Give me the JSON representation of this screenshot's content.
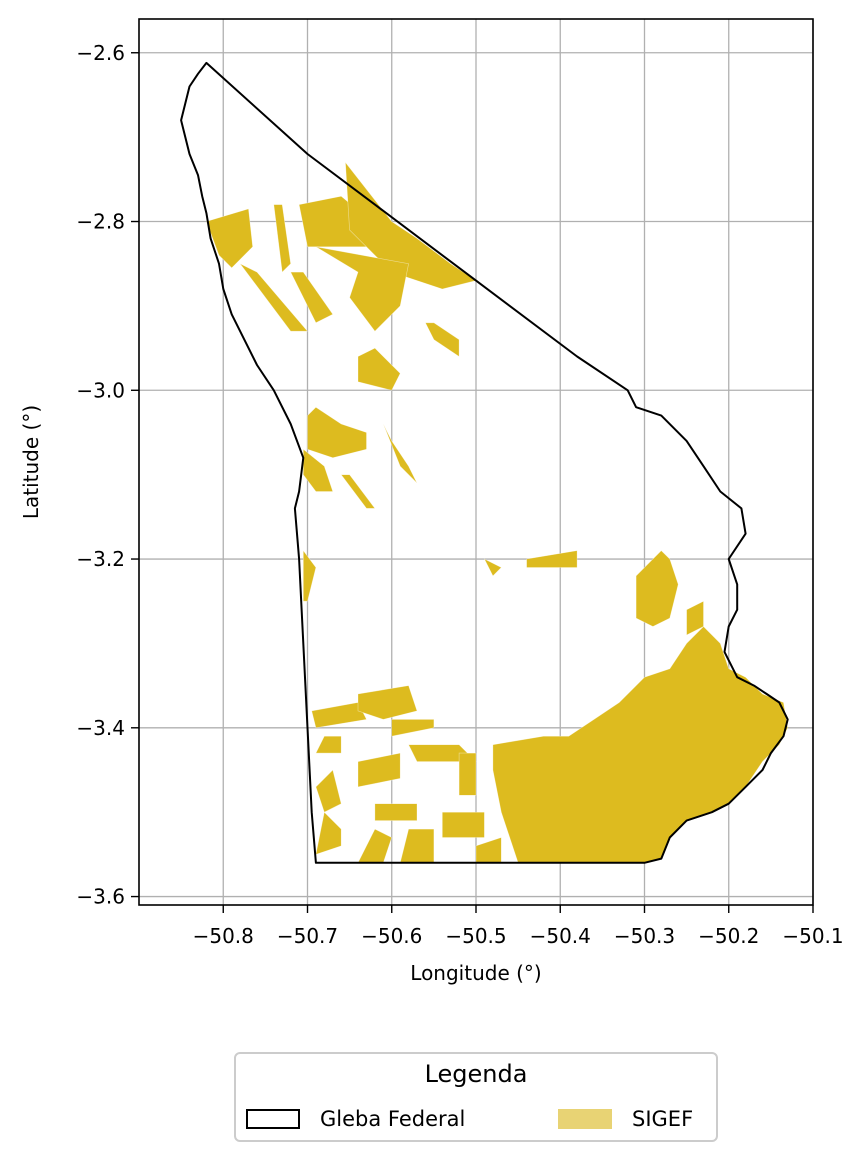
{
  "chart_data": {
    "type": "map",
    "title": "",
    "xlabel": "Longitude (°)",
    "ylabel": "Latitude (°)",
    "xlim": [
      -50.9,
      -50.1
    ],
    "ylim": [
      -3.61,
      -2.56
    ],
    "grid": true,
    "xticks": [
      -50.8,
      -50.7,
      -50.6,
      -50.5,
      -50.4,
      -50.3,
      -50.2,
      -50.1
    ],
    "xtick_labels": [
      "−50.8",
      "−50.7",
      "−50.6",
      "−50.5",
      "−50.4",
      "−50.3",
      "−50.2",
      "−50.1"
    ],
    "yticks": [
      -2.6,
      -2.8,
      -3.0,
      -3.2,
      -3.4,
      -3.6
    ],
    "ytick_labels": [
      "−2.6",
      "−2.8",
      "−3.0",
      "−3.2",
      "−3.4",
      "−3.6"
    ],
    "legend": {
      "title": "Legenda",
      "placement": "bottom-center",
      "entries": [
        {
          "label": "Gleba Federal",
          "style": "outline",
          "color": "#000000"
        },
        {
          "label": "SIGEF",
          "style": "fill",
          "color": "#ddbb1f"
        }
      ]
    },
    "layers": {
      "gleba_federal": {
        "name": "Gleba Federal",
        "outline_color": "#000000",
        "boundary": [
          [
            -50.82,
            -2.612
          ],
          [
            -50.83,
            -2.625
          ],
          [
            -50.84,
            -2.64
          ],
          [
            -50.845,
            -2.66
          ],
          [
            -50.85,
            -2.68
          ],
          [
            -50.845,
            -2.7
          ],
          [
            -50.84,
            -2.72
          ],
          [
            -50.83,
            -2.745
          ],
          [
            -50.825,
            -2.77
          ],
          [
            -50.82,
            -2.79
          ],
          [
            -50.815,
            -2.82
          ],
          [
            -50.805,
            -2.85
          ],
          [
            -50.8,
            -2.88
          ],
          [
            -50.79,
            -2.91
          ],
          [
            -50.775,
            -2.94
          ],
          [
            -50.76,
            -2.97
          ],
          [
            -50.74,
            -3.0
          ],
          [
            -50.72,
            -3.04
          ],
          [
            -50.705,
            -3.08
          ],
          [
            -50.71,
            -3.12
          ],
          [
            -50.715,
            -3.14
          ],
          [
            -50.71,
            -3.2
          ],
          [
            -50.705,
            -3.3
          ],
          [
            -50.7,
            -3.4
          ],
          [
            -50.695,
            -3.5
          ],
          [
            -50.69,
            -3.56
          ],
          [
            -50.3,
            -3.56
          ],
          [
            -50.28,
            -3.555
          ],
          [
            -50.27,
            -3.53
          ],
          [
            -50.25,
            -3.51
          ],
          [
            -50.22,
            -3.5
          ],
          [
            -50.2,
            -3.49
          ],
          [
            -50.18,
            -3.47
          ],
          [
            -50.16,
            -3.45
          ],
          [
            -50.15,
            -3.43
          ],
          [
            -50.135,
            -3.41
          ],
          [
            -50.13,
            -3.39
          ],
          [
            -50.14,
            -3.37
          ],
          [
            -50.155,
            -3.36
          ],
          [
            -50.17,
            -3.35
          ],
          [
            -50.19,
            -3.34
          ],
          [
            -50.205,
            -3.31
          ],
          [
            -50.2,
            -3.28
          ],
          [
            -50.19,
            -3.26
          ],
          [
            -50.19,
            -3.23
          ],
          [
            -50.2,
            -3.2
          ],
          [
            -50.18,
            -3.17
          ],
          [
            -50.185,
            -3.14
          ],
          [
            -50.21,
            -3.12
          ],
          [
            -50.23,
            -3.09
          ],
          [
            -50.25,
            -3.06
          ],
          [
            -50.28,
            -3.03
          ],
          [
            -50.31,
            -3.02
          ],
          [
            -50.32,
            -3.0
          ],
          [
            -50.38,
            -2.96
          ],
          [
            -50.5,
            -2.87
          ],
          [
            -50.62,
            -2.78
          ],
          [
            -50.7,
            -2.72
          ],
          [
            -50.82,
            -2.612
          ]
        ]
      },
      "sigef": {
        "name": "SIGEF",
        "fill_color": "#ddbb1f",
        "parcels": [
          [
            [
              -50.82,
              -2.8
            ],
            [
              -50.77,
              -2.785
            ],
            [
              -50.765,
              -2.83
            ],
            [
              -50.79,
              -2.855
            ],
            [
              -50.805,
              -2.84
            ]
          ],
          [
            [
              -50.74,
              -2.78
            ],
            [
              -50.73,
              -2.78
            ],
            [
              -50.72,
              -2.85
            ],
            [
              -50.73,
              -2.86
            ]
          ],
          [
            [
              -50.71,
              -2.78
            ],
            [
              -50.66,
              -2.77
            ],
            [
              -50.6,
              -2.82
            ],
            [
              -50.63,
              -2.83
            ],
            [
              -50.69,
              -2.83
            ],
            [
              -50.7,
              -2.83
            ]
          ],
          [
            [
              -50.655,
              -2.73
            ],
            [
              -50.6,
              -2.8
            ],
            [
              -50.57,
              -2.82
            ],
            [
              -50.53,
              -2.85
            ],
            [
              -50.5,
              -2.87
            ],
            [
              -50.54,
              -2.88
            ],
            [
              -50.6,
              -2.86
            ],
            [
              -50.65,
              -2.81
            ]
          ],
          [
            [
              -50.69,
              -2.83
            ],
            [
              -50.64,
              -2.86
            ],
            [
              -50.65,
              -2.89
            ],
            [
              -50.62,
              -2.93
            ],
            [
              -50.59,
              -2.9
            ],
            [
              -50.58,
              -2.85
            ]
          ],
          [
            [
              -50.72,
              -2.86
            ],
            [
              -50.705,
              -2.86
            ],
            [
              -50.67,
              -2.91
            ],
            [
              -50.69,
              -2.92
            ]
          ],
          [
            [
              -50.78,
              -2.85
            ],
            [
              -50.76,
              -2.86
            ],
            [
              -50.7,
              -2.93
            ],
            [
              -50.72,
              -2.93
            ]
          ],
          [
            [
              -50.56,
              -2.92
            ],
            [
              -50.55,
              -2.92
            ],
            [
              -50.52,
              -2.94
            ],
            [
              -50.52,
              -2.96
            ],
            [
              -50.55,
              -2.94
            ]
          ],
          [
            [
              -50.64,
              -2.96
            ],
            [
              -50.62,
              -2.95
            ],
            [
              -50.59,
              -2.98
            ],
            [
              -50.6,
              -3.0
            ],
            [
              -50.64,
              -2.99
            ]
          ],
          [
            [
              -50.7,
              -3.03
            ],
            [
              -50.69,
              -3.02
            ],
            [
              -50.66,
              -3.04
            ],
            [
              -50.63,
              -3.05
            ],
            [
              -50.63,
              -3.07
            ],
            [
              -50.67,
              -3.08
            ],
            [
              -50.7,
              -3.07
            ]
          ],
          [
            [
              -50.61,
              -3.04
            ],
            [
              -50.6,
              -3.06
            ],
            [
              -50.58,
              -3.09
            ],
            [
              -50.57,
              -3.11
            ],
            [
              -50.59,
              -3.09
            ]
          ],
          [
            [
              -50.705,
              -3.07
            ],
            [
              -50.68,
              -3.09
            ],
            [
              -50.67,
              -3.12
            ],
            [
              -50.69,
              -3.12
            ],
            [
              -50.705,
              -3.1
            ]
          ],
          [
            [
              -50.66,
              -3.1
            ],
            [
              -50.65,
              -3.1
            ],
            [
              -50.62,
              -3.14
            ],
            [
              -50.63,
              -3.14
            ]
          ],
          [
            [
              -50.705,
              -3.19
            ],
            [
              -50.69,
              -3.21
            ],
            [
              -50.7,
              -3.25
            ],
            [
              -50.705,
              -3.25
            ]
          ],
          [
            [
              -50.49,
              -3.2
            ],
            [
              -50.47,
              -3.21
            ],
            [
              -50.48,
              -3.22
            ]
          ],
          [
            [
              -50.44,
              -3.2
            ],
            [
              -50.38,
              -3.19
            ],
            [
              -50.38,
              -3.21
            ],
            [
              -50.44,
              -3.21
            ]
          ],
          [
            [
              -50.28,
              -3.19
            ],
            [
              -50.27,
              -3.2
            ],
            [
              -50.26,
              -3.23
            ],
            [
              -50.27,
              -3.27
            ],
            [
              -50.29,
              -3.28
            ],
            [
              -50.31,
              -3.27
            ],
            [
              -50.31,
              -3.22
            ]
          ],
          [
            [
              -50.25,
              -3.26
            ],
            [
              -50.23,
              -3.25
            ],
            [
              -50.23,
              -3.28
            ],
            [
              -50.25,
              -3.29
            ]
          ],
          [
            [
              -50.695,
              -3.38
            ],
            [
              -50.64,
              -3.37
            ],
            [
              -50.63,
              -3.39
            ],
            [
              -50.69,
              -3.4
            ]
          ],
          [
            [
              -50.64,
              -3.36
            ],
            [
              -50.58,
              -3.35
            ],
            [
              -50.57,
              -3.38
            ],
            [
              -50.61,
              -3.39
            ],
            [
              -50.64,
              -3.38
            ]
          ],
          [
            [
              -50.6,
              -3.39
            ],
            [
              -50.55,
              -3.39
            ],
            [
              -50.55,
              -3.4
            ],
            [
              -50.6,
              -3.41
            ]
          ],
          [
            [
              -50.68,
              -3.41
            ],
            [
              -50.66,
              -3.41
            ],
            [
              -50.66,
              -3.43
            ],
            [
              -50.69,
              -3.43
            ]
          ],
          [
            [
              -50.58,
              -3.42
            ],
            [
              -50.52,
              -3.42
            ],
            [
              -50.5,
              -3.44
            ],
            [
              -50.57,
              -3.44
            ]
          ],
          [
            [
              -50.64,
              -3.44
            ],
            [
              -50.59,
              -3.43
            ],
            [
              -50.59,
              -3.46
            ],
            [
              -50.64,
              -3.47
            ]
          ],
          [
            [
              -50.69,
              -3.47
            ],
            [
              -50.67,
              -3.45
            ],
            [
              -50.66,
              -3.49
            ],
            [
              -50.68,
              -3.5
            ]
          ],
          [
            [
              -50.62,
              -3.49
            ],
            [
              -50.57,
              -3.49
            ],
            [
              -50.57,
              -3.51
            ],
            [
              -50.62,
              -3.51
            ]
          ],
          [
            [
              -50.68,
              -3.5
            ],
            [
              -50.66,
              -3.52
            ],
            [
              -50.66,
              -3.54
            ],
            [
              -50.69,
              -3.55
            ]
          ],
          [
            [
              -50.62,
              -3.52
            ],
            [
              -50.6,
              -3.53
            ],
            [
              -50.61,
              -3.56
            ],
            [
              -50.64,
              -3.56
            ]
          ],
          [
            [
              -50.58,
              -3.52
            ],
            [
              -50.55,
              -3.52
            ],
            [
              -50.55,
              -3.56
            ],
            [
              -50.59,
              -3.56
            ]
          ],
          [
            [
              -50.54,
              -3.5
            ],
            [
              -50.49,
              -3.5
            ],
            [
              -50.49,
              -3.53
            ],
            [
              -50.54,
              -3.53
            ]
          ],
          [
            [
              -50.52,
              -3.43
            ],
            [
              -50.5,
              -3.43
            ],
            [
              -50.5,
              -3.48
            ],
            [
              -50.52,
              -3.48
            ]
          ],
          [
            [
              -50.5,
              -3.54
            ],
            [
              -50.47,
              -3.53
            ],
            [
              -50.47,
              -3.56
            ],
            [
              -50.5,
              -3.56
            ]
          ],
          [
            [
              -50.48,
              -3.42
            ],
            [
              -50.42,
              -3.41
            ],
            [
              -50.39,
              -3.41
            ],
            [
              -50.36,
              -3.39
            ],
            [
              -50.33,
              -3.37
            ],
            [
              -50.3,
              -3.34
            ],
            [
              -50.27,
              -3.33
            ],
            [
              -50.25,
              -3.3
            ],
            [
              -50.23,
              -3.28
            ],
            [
              -50.21,
              -3.3
            ],
            [
              -50.2,
              -3.33
            ],
            [
              -50.18,
              -3.34
            ],
            [
              -50.16,
              -3.36
            ],
            [
              -50.135,
              -3.37
            ],
            [
              -50.13,
              -3.4
            ],
            [
              -50.14,
              -3.42
            ],
            [
              -50.16,
              -3.44
            ],
            [
              -50.18,
              -3.47
            ],
            [
              -50.2,
              -3.49
            ],
            [
              -50.22,
              -3.5
            ],
            [
              -50.25,
              -3.51
            ],
            [
              -50.27,
              -3.53
            ],
            [
              -50.28,
              -3.555
            ],
            [
              -50.3,
              -3.56
            ],
            [
              -50.45,
              -3.56
            ],
            [
              -50.47,
              -3.5
            ],
            [
              -50.48,
              -3.45
            ]
          ]
        ]
      }
    }
  }
}
